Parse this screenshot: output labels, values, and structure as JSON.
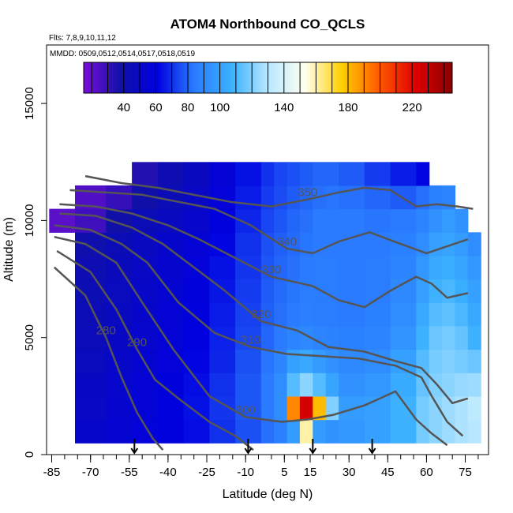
{
  "chart_data": {
    "type": "heatmap",
    "title": "ATOM4 Northbound CO_QCLS",
    "subtitle_lines": [
      "Flts: 7,8,9,10,11,12",
      "MMDD: 0509,0512,0514,0517,0518,0519"
    ],
    "xlabel": "Latitude (deg N)",
    "ylabel": "Altitude (m)",
    "xlim": [
      -87,
      84
    ],
    "ylim": [
      0,
      17500
    ],
    "x_ticks": [
      -85,
      -70,
      -55,
      -40,
      -25,
      -10,
      5,
      15,
      30,
      45,
      60,
      75
    ],
    "y_ticks": [
      0,
      5000,
      10000,
      15000
    ],
    "colorbar": {
      "range": [
        15,
        245
      ],
      "tick_values": [
        40,
        60,
        80,
        100,
        140,
        180,
        220
      ],
      "colors": [
        "#7b0ed8",
        "#1010a8",
        "#0000e0",
        "#2a7bff",
        "#3ab0ff",
        "#b8e8ff",
        "#fffff0",
        "#ffd000",
        "#ff5a00",
        "#e00000",
        "#8a0000"
      ]
    },
    "co_field": {
      "lat_edges": [
        -86,
        -76,
        -64,
        -54,
        -44,
        -34,
        -24,
        -14,
        -4,
        1,
        6,
        11,
        16,
        21,
        26,
        36,
        46,
        56,
        61,
        66,
        71,
        76,
        81
      ],
      "alt_edges": [
        500,
        1500,
        2500,
        3500,
        4500,
        5500,
        6500,
        7500,
        8500,
        9500,
        10500,
        11500,
        12500
      ],
      "values_ppbv": [
        [
          null,
          52,
          55,
          58,
          60,
          63,
          70,
          76,
          82,
          86,
          98,
          160,
          98,
          94,
          96,
          100,
          108,
          118,
          122,
          125,
          128,
          130
        ],
        [
          null,
          50,
          54,
          57,
          60,
          64,
          71,
          77,
          84,
          92,
          190,
          225,
          180,
          120,
          98,
          100,
          108,
          118,
          122,
          125,
          128,
          132
        ],
        [
          null,
          49,
          53,
          56,
          59,
          63,
          70,
          77,
          84,
          92,
          112,
          122,
          112,
          102,
          94,
          96,
          105,
          115,
          120,
          122,
          124,
          125
        ],
        [
          null,
          47,
          51,
          55,
          58,
          62,
          68,
          76,
          83,
          88,
          100,
          104,
          98,
          94,
          90,
          92,
          100,
          112,
          118,
          120,
          118,
          116
        ],
        [
          null,
          45,
          49,
          53,
          57,
          61,
          67,
          74,
          80,
          84,
          88,
          90,
          88,
          87,
          86,
          88,
          95,
          108,
          116,
          118,
          115,
          108
        ],
        [
          null,
          44,
          48,
          52,
          56,
          60,
          66,
          73,
          79,
          82,
          84,
          86,
          85,
          85,
          84,
          86,
          92,
          104,
          112,
          114,
          110,
          104
        ],
        [
          null,
          43,
          47,
          51,
          55,
          59,
          65,
          72,
          78,
          81,
          83,
          85,
          85,
          85,
          84,
          85,
          90,
          100,
          108,
          110,
          106,
          100
        ],
        [
          null,
          42,
          46,
          50,
          54,
          58,
          64,
          71,
          77,
          80,
          82,
          84,
          85,
          85,
          84,
          85,
          88,
          96,
          104,
          106,
          102,
          96
        ],
        [
          null,
          40,
          44,
          48,
          52,
          56,
          62,
          70,
          76,
          79,
          81,
          83,
          84,
          84,
          84,
          84,
          86,
          92,
          100,
          102,
          98,
          92
        ],
        [
          22,
          28,
          38,
          44,
          48,
          53,
          60,
          68,
          74,
          77,
          80,
          82,
          84,
          84,
          84,
          83,
          84,
          88,
          94,
          98,
          94,
          null
        ],
        [
          null,
          24,
          30,
          38,
          44,
          50,
          58,
          66,
          72,
          75,
          78,
          80,
          82,
          83,
          82,
          80,
          78,
          82,
          86,
          88,
          null,
          null
        ],
        [
          null,
          null,
          null,
          34,
          42,
          48,
          56,
          64,
          70,
          74,
          76,
          78,
          80,
          80,
          78,
          72,
          66,
          62,
          null,
          null,
          null,
          null
        ]
      ]
    },
    "isentropes": [
      {
        "label": "280",
        "points": [
          [
            -84,
            8000
          ],
          [
            -72,
            6800
          ],
          [
            -64,
            5000
          ],
          [
            -58,
            3300
          ],
          [
            -52,
            1800
          ],
          [
            -46,
            700
          ],
          [
            -42,
            200
          ]
        ]
      },
      {
        "label": "290",
        "points": [
          [
            -83,
            8700
          ],
          [
            -70,
            7800
          ],
          [
            -60,
            6200
          ],
          [
            -52,
            4500
          ],
          [
            -45,
            3200
          ],
          [
            -36,
            2400
          ],
          [
            -24,
            1400
          ],
          [
            -14,
            800
          ],
          [
            -7,
            200
          ]
        ]
      },
      {
        "label": "300",
        "points": [
          [
            -84,
            9300
          ],
          [
            -72,
            9000
          ],
          [
            -60,
            8200
          ],
          [
            -50,
            6500
          ],
          [
            -38,
            4500
          ],
          [
            -24,
            2500
          ],
          [
            -10,
            1600
          ],
          [
            4,
            1400
          ],
          [
            14,
            1500
          ],
          [
            24,
            1700
          ],
          [
            36,
            2100
          ],
          [
            48,
            2700
          ],
          [
            56,
            1500
          ],
          [
            62,
            900
          ],
          [
            68,
            400
          ]
        ]
      },
      {
        "label": "310",
        "points": [
          [
            -84,
            9800
          ],
          [
            -70,
            9600
          ],
          [
            -58,
            9000
          ],
          [
            -48,
            8200
          ],
          [
            -36,
            6500
          ],
          [
            -22,
            5200
          ],
          [
            -8,
            4600
          ],
          [
            6,
            4300
          ],
          [
            20,
            4200
          ],
          [
            34,
            4100
          ],
          [
            48,
            3800
          ],
          [
            58,
            3300
          ],
          [
            62,
            2500
          ],
          [
            68,
            1400
          ],
          [
            74,
            800
          ]
        ]
      },
      {
        "label": "320",
        "points": [
          [
            -82,
            10300
          ],
          [
            -68,
            10200
          ],
          [
            -54,
            9700
          ],
          [
            -42,
            9000
          ],
          [
            -30,
            8000
          ],
          [
            -18,
            7000
          ],
          [
            -4,
            5700
          ],
          [
            10,
            5300
          ],
          [
            22,
            4600
          ],
          [
            36,
            4400
          ],
          [
            48,
            4000
          ],
          [
            58,
            3700
          ],
          [
            64,
            3000
          ],
          [
            70,
            2200
          ],
          [
            76,
            2400
          ]
        ]
      },
      {
        "label": "330",
        "points": [
          [
            -82,
            10700
          ],
          [
            -68,
            10600
          ],
          [
            -54,
            10300
          ],
          [
            -40,
            9800
          ],
          [
            -28,
            9200
          ],
          [
            -14,
            8400
          ],
          [
            0,
            7600
          ],
          [
            16,
            7200
          ],
          [
            26,
            6600
          ],
          [
            36,
            6300
          ],
          [
            46,
            7000
          ],
          [
            56,
            7600
          ],
          [
            62,
            7300
          ],
          [
            68,
            6700
          ],
          [
            76,
            6900
          ]
        ]
      },
      {
        "label": "340",
        "points": [
          [
            -78,
            11300
          ],
          [
            -64,
            11200
          ],
          [
            -50,
            11100
          ],
          [
            -36,
            10800
          ],
          [
            -22,
            10500
          ],
          [
            -8,
            9800
          ],
          [
            6,
            8800
          ],
          [
            16,
            8600
          ],
          [
            26,
            9100
          ],
          [
            38,
            9500
          ],
          [
            50,
            9000
          ],
          [
            60,
            8600
          ],
          [
            68,
            8900
          ],
          [
            76,
            9200
          ]
        ]
      },
      {
        "label": "350",
        "points": [
          [
            -72,
            11900
          ],
          [
            -58,
            11600
          ],
          [
            -44,
            11400
          ],
          [
            -30,
            11100
          ],
          [
            -16,
            10800
          ],
          [
            0,
            10600
          ],
          [
            14,
            10900
          ],
          [
            26,
            11200
          ],
          [
            36,
            11400
          ],
          [
            46,
            11300
          ],
          [
            56,
            10600
          ],
          [
            64,
            10700
          ],
          [
            72,
            10600
          ],
          [
            78,
            10500
          ]
        ]
      }
    ],
    "flight_markers_lat": [
      -53,
      -9,
      16,
      39
    ],
    "colors": {
      "contour": "#555555",
      "marker": "#000000",
      "background": "#ffffff"
    }
  }
}
